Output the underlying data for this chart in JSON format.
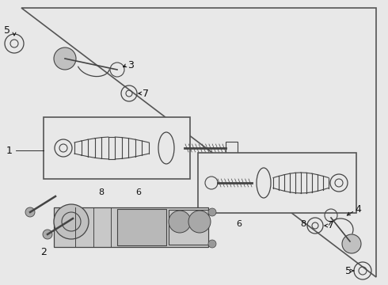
{
  "bg_color": "#e8e8e8",
  "border_color": "#555555",
  "part_color": "#444444",
  "box_bg": "#e8e8e8",
  "label_color": "#111111",
  "figsize": [
    4.9,
    3.6
  ],
  "dpi": 100
}
